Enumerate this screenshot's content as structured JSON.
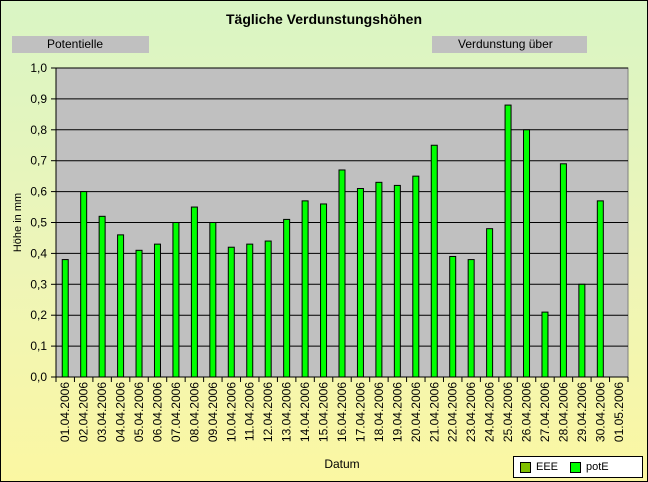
{
  "header": {
    "title": "Tägliche Verdunstungshöhen",
    "tag_left": "Potentielle",
    "tag_right": "Verdunstung über"
  },
  "colors": {
    "plot_background": "#c0c0c0",
    "bar_fill": "#00ff00",
    "bar_outline": "#000000",
    "eee_swatch": "#80c000",
    "pote_swatch": "#00ff00"
  },
  "chart_data": {
    "type": "bar",
    "title": "Tägliche Verdunstungshöhen",
    "xlabel": "Datum",
    "ylabel": "Höhe in mm",
    "ylim": [
      0,
      1.0
    ],
    "yticks": [
      "0,0",
      "0,1",
      "0,2",
      "0,3",
      "0,4",
      "0,5",
      "0,6",
      "0,7",
      "0,8",
      "0,9",
      "1,0"
    ],
    "grid": true,
    "legend_position": "bottom-right",
    "categories": [
      "01.04.2006",
      "02.04.2006",
      "03.04.2006",
      "04.04.2006",
      "05.04.2006",
      "06.04.2006",
      "07.04.2006",
      "08.04.2006",
      "09.04.2006",
      "10.04.2006",
      "11.04.2006",
      "12.04.2006",
      "13.04.2006",
      "14.04.2006",
      "15.04.2006",
      "16.04.2006",
      "17.04.2006",
      "18.04.2006",
      "19.04.2006",
      "20.04.2006",
      "21.04.2006",
      "22.04.2006",
      "23.04.2006",
      "24.04.2006",
      "25.04.2006",
      "26.04.2006",
      "27.04.2006",
      "28.04.2006",
      "29.04.2006",
      "30.04.2006",
      "01.05.2006"
    ],
    "series": [
      {
        "name": "EEE",
        "color": "#80c000",
        "values": [
          null,
          null,
          null,
          null,
          null,
          null,
          null,
          null,
          null,
          null,
          null,
          null,
          null,
          null,
          null,
          null,
          null,
          null,
          null,
          null,
          null,
          null,
          null,
          null,
          null,
          null,
          null,
          null,
          null,
          null,
          null
        ]
      },
      {
        "name": "potE",
        "color": "#00ff00",
        "values": [
          0.38,
          0.6,
          0.52,
          0.46,
          0.41,
          0.43,
          0.5,
          0.55,
          0.5,
          0.42,
          0.43,
          0.44,
          0.51,
          0.57,
          0.56,
          0.67,
          0.61,
          0.63,
          0.62,
          0.65,
          0.75,
          0.39,
          0.38,
          0.48,
          0.88,
          0.8,
          0.21,
          0.69,
          0.3,
          0.57,
          null
        ]
      }
    ]
  }
}
